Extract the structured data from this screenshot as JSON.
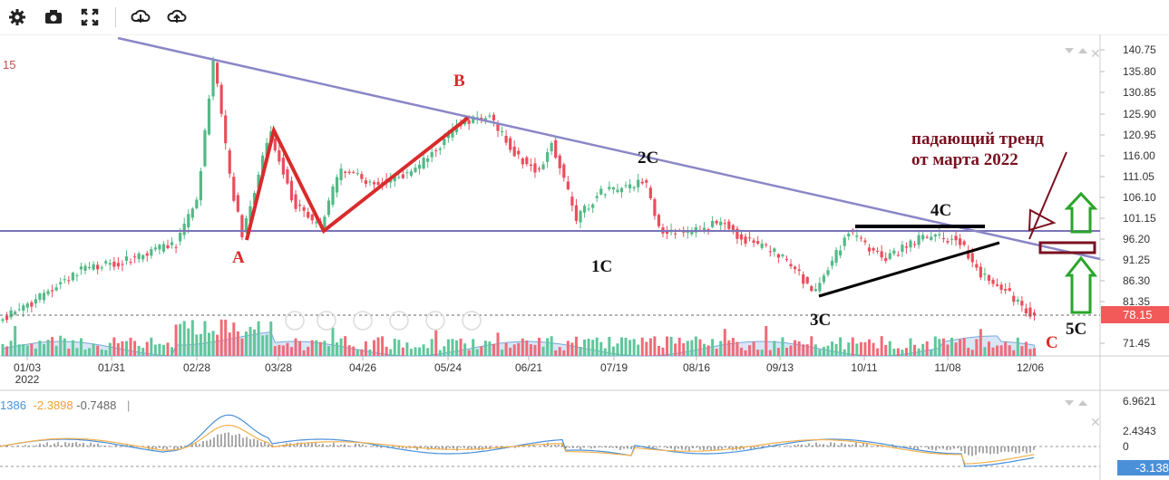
{
  "toolbar": {
    "items": [
      {
        "icon": "gear-icon",
        "interactable": true
      },
      {
        "icon": "camera-icon",
        "interactable": true
      },
      {
        "icon": "fullscreen-icon",
        "interactable": true
      },
      {
        "icon": "download-icon",
        "interactable": true
      },
      {
        "icon": "upload-icon",
        "interactable": true
      }
    ]
  },
  "chart_data": [
    {
      "type": "candlestick",
      "x_ticks": [
        "01/03\n2022",
        "01/31",
        "02/28",
        "03/28",
        "04/26",
        "05/24",
        "06/21",
        "07/19",
        "08/16",
        "09/13",
        "10/11",
        "11/08",
        "12/06"
      ],
      "y_ticks": [
        "140.75",
        "135.80",
        "130.85",
        "125.90",
        "120.95",
        "116.00",
        "111.05",
        "106.10",
        "101.15",
        "96.20",
        "91.25",
        "86.30",
        "81.35",
        "71.45"
      ],
      "ylim": [
        71.45,
        140.75
      ],
      "last_price_label": "78.15",
      "top_left_label": "15",
      "annotations": {
        "wave_labels": [
          "A",
          "B",
          "C",
          "1C",
          "2C",
          "3C",
          "4C",
          "5C"
        ],
        "trend_text_line1": "падающий тренд",
        "trend_text_line2": "от марта 2022"
      },
      "colors": {
        "up": "#53b987",
        "down": "#eb4d5c",
        "trendline": "#8b86c7",
        "level": "#7a74b8",
        "red": "#d92b2b",
        "maroon": "#7a1020",
        "green": "#2aa52a",
        "volume_area": "#a9c8ec"
      }
    },
    {
      "type": "line",
      "indicator_values": [
        "1386",
        "-2.3898",
        "-0.7488"
      ],
      "y_ticks": [
        "6.9621",
        "2.4343",
        "0",
        "-3.138"
      ],
      "last_value_label": "-3.138",
      "colors": {
        "line1": "#4a90d9",
        "line2": "#f2b04d",
        "hist": "#555555"
      }
    }
  ]
}
